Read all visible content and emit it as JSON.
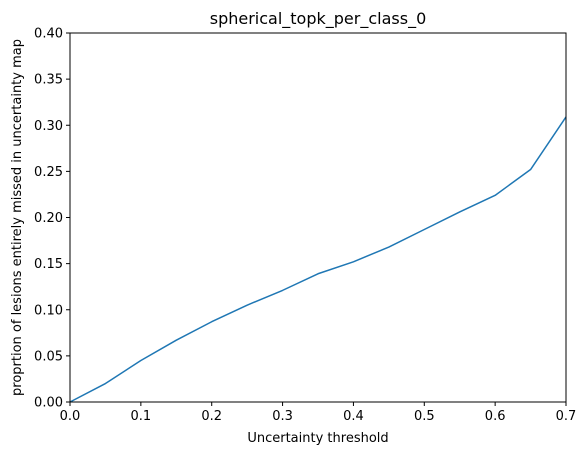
{
  "chart_data": {
    "type": "line",
    "title": "spherical_topk_per_class_0",
    "xlabel": "Uncertainty threshold",
    "ylabel": "proprtion of lesions entirely missed in uncertainty map",
    "xlim": [
      0,
      0.7
    ],
    "ylim": [
      0,
      0.4
    ],
    "x_ticks": [
      0.0,
      0.1,
      0.2,
      0.3,
      0.4,
      0.5,
      0.6,
      0.7
    ],
    "y_ticks": [
      0.0,
      0.05,
      0.1,
      0.15,
      0.2,
      0.25,
      0.3,
      0.35,
      0.4
    ],
    "x_tick_labels": [
      "0.0",
      "0.1",
      "0.2",
      "0.3",
      "0.4",
      "0.5",
      "0.6",
      "0.7"
    ],
    "y_tick_labels": [
      "0.00",
      "0.05",
      "0.10",
      "0.15",
      "0.20",
      "0.25",
      "0.30",
      "0.35",
      "0.40"
    ],
    "grid": false,
    "series": [
      {
        "color": "#1f77b4",
        "x": [
          0.0,
          0.05,
          0.1,
          0.15,
          0.2,
          0.25,
          0.3,
          0.35,
          0.4,
          0.45,
          0.5,
          0.55,
          0.6,
          0.65,
          0.7
        ],
        "y": [
          0.0,
          0.02,
          0.045,
          0.067,
          0.087,
          0.105,
          0.121,
          0.139,
          0.152,
          0.168,
          0.187,
          0.206,
          0.224,
          0.252,
          0.309
        ]
      }
    ]
  }
}
